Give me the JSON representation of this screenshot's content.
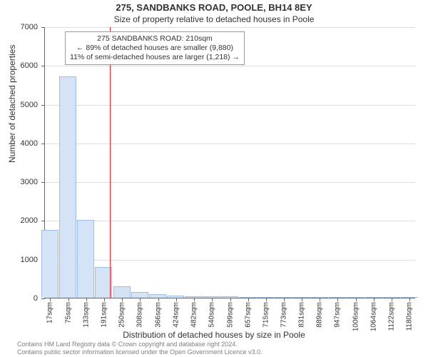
{
  "title_line1": "275, SANDBANKS ROAD, POOLE, BH14 8EY",
  "title_line2": "Size of property relative to detached houses in Poole",
  "ylabel": "Number of detached properties",
  "xlabel": "Distribution of detached houses by size in Poole",
  "chart": {
    "type": "histogram",
    "background_color": "#ffffff",
    "grid_color": "#dddddd",
    "axis_color": "#666666",
    "text_color": "#333333",
    "bar_fill": "#d5e3f7",
    "bar_stroke": "#9fbde3",
    "reference_line_color": "#e03030",
    "reference_value_sqm": 210,
    "title_fontsize": 13,
    "subtitle_fontsize": 12,
    "label_fontsize": 12,
    "tick_fontsize": 11,
    "ylim": [
      0,
      7000
    ],
    "ytick_step": 1000,
    "xlim": [
      0,
      1200
    ],
    "xticks": [
      17,
      75,
      133,
      191,
      250,
      308,
      366,
      424,
      482,
      540,
      599,
      657,
      715,
      773,
      831,
      889,
      947,
      1006,
      1064,
      1122,
      1180
    ],
    "xtick_suffix": "sqm",
    "bar_width_sqm": 58,
    "bars": [
      {
        "x": 17,
        "count": 1750
      },
      {
        "x": 75,
        "count": 5720
      },
      {
        "x": 133,
        "count": 2010
      },
      {
        "x": 191,
        "count": 800
      },
      {
        "x": 250,
        "count": 300
      },
      {
        "x": 308,
        "count": 150
      },
      {
        "x": 366,
        "count": 90
      },
      {
        "x": 424,
        "count": 60
      },
      {
        "x": 482,
        "count": 45
      },
      {
        "x": 540,
        "count": 35
      },
      {
        "x": 599,
        "count": 28
      },
      {
        "x": 657,
        "count": 24
      },
      {
        "x": 715,
        "count": 18
      },
      {
        "x": 773,
        "count": 6
      },
      {
        "x": 831,
        "count": 4
      },
      {
        "x": 889,
        "count": 3
      },
      {
        "x": 947,
        "count": 2
      },
      {
        "x": 1006,
        "count": 2
      },
      {
        "x": 1064,
        "count": 1
      },
      {
        "x": 1122,
        "count": 1
      },
      {
        "x": 1180,
        "count": 1
      }
    ]
  },
  "annotation": {
    "line1": "275 SANDBANKS ROAD: 210sqm",
    "line2": "← 89% of detached houses are smaller (9,880)",
    "line3": "11% of semi-detached houses are larger (1,218) →",
    "box_border": "#999999",
    "box_bg": "#ffffff",
    "fontsize": 10.5
  },
  "footer": {
    "line1": "Contains HM Land Registry data © Crown copyright and database right 2024.",
    "line2": "Contains public sector information licensed under the Open Government Licence v3.0.",
    "color": "#808080",
    "fontsize": 9
  }
}
